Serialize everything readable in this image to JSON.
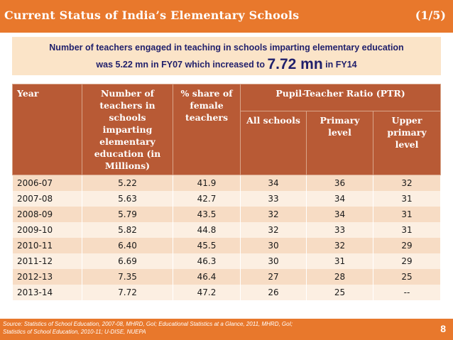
{
  "header": {
    "title": "Current Status of India’s Elementary Schools",
    "page_indicator": "(1/5)"
  },
  "callout": {
    "line1": "Number of teachers engaged in teaching in schools imparting elementary education",
    "line2_prefix": "was 5.22 mn in FY07 which increased to ",
    "line2_highlight": "7.72 mn",
    "line2_suffix": " in FY14"
  },
  "table": {
    "headers": {
      "year": "Year",
      "teachers": "Number of teachers in schools imparting elementary education (in Millions)",
      "female": "% share of female teachers",
      "ptr": "Pupil-Teacher Ratio (PTR)",
      "all": "All schools",
      "primary": "Primary level",
      "upper": "Upper primary level"
    },
    "rows": [
      {
        "year": "2006-07",
        "teachers": "5.22",
        "female": "41.9",
        "all": "34",
        "primary": "36",
        "upper": "32"
      },
      {
        "year": "2007-08",
        "teachers": "5.63",
        "female": "42.7",
        "all": "33",
        "primary": "34",
        "upper": "31"
      },
      {
        "year": "2008-09",
        "teachers": "5.79",
        "female": "43.5",
        "all": "32",
        "primary": "34",
        "upper": "31"
      },
      {
        "year": "2009-10",
        "teachers": "5.82",
        "female": "44.8",
        "all": "32",
        "primary": "33",
        "upper": "31"
      },
      {
        "year": "2010-11",
        "teachers": "6.40",
        "female": "45.5",
        "all": "30",
        "primary": "32",
        "upper": "29"
      },
      {
        "year": "2011-12",
        "teachers": "6.69",
        "female": "46.3",
        "all": "30",
        "primary": "31",
        "upper": "29"
      },
      {
        "year": "2012-13",
        "teachers": "7.35",
        "female": "46.4",
        "all": "27",
        "primary": "28",
        "upper": "25"
      },
      {
        "year": "2013-14",
        "teachers": "7.72",
        "female": "47.2",
        "all": "26",
        "primary": "25",
        "upper": "--"
      }
    ]
  },
  "footer": {
    "source_line1": "Source: Statistics of School Education, 2007-08, MHRD, GoI; Educational Statistics at a Glance, 2011, MHRD, GoI;",
    "source_line2": "Statistics of School Education, 2010-11; U-DISE, NUEPA",
    "slide_number": "8"
  },
  "colors": {
    "accent": "#e8782c",
    "table_header": "#b85a35",
    "row_odd": "#f7dcc4",
    "row_even": "#fcefe2",
    "callout_bg": "#fbe4c8",
    "callout_text": "#1f1f6b"
  }
}
